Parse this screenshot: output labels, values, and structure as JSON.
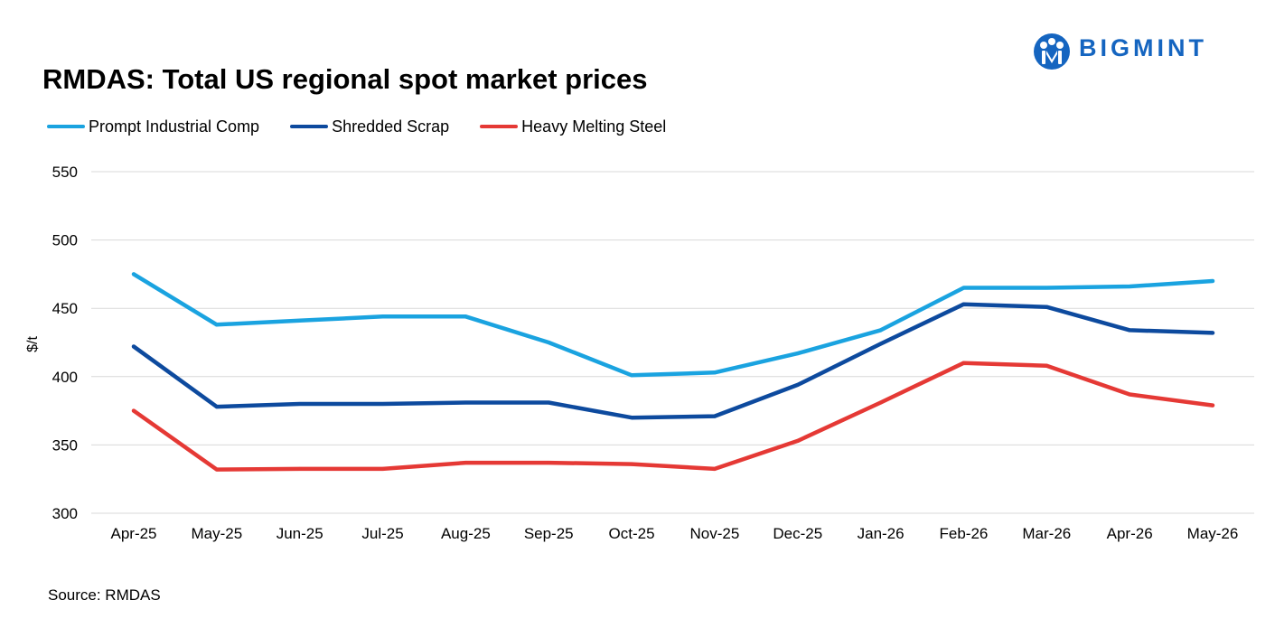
{
  "brand": {
    "name": "BIGMINT",
    "logo_icon": "bigmint-logo-icon",
    "color": "#1565c0"
  },
  "source": "Source: RMDAS",
  "chart_data": {
    "type": "line",
    "title": "RMDAS: Total US regional spot market prices",
    "xlabel": "",
    "ylabel": "$/t",
    "categories": [
      "Apr-25",
      "May-25",
      "Jun-25",
      "Jul-25",
      "Aug-25",
      "Sep-25",
      "Oct-25",
      "Nov-25",
      "Dec-25",
      "Jan-26",
      "Feb-26",
      "Mar-26",
      "Apr-26",
      "May-26"
    ],
    "ylim": [
      300,
      550
    ],
    "yticks": [
      "300",
      "350",
      "400",
      "450",
      "500",
      "550"
    ],
    "grid": true,
    "legend_position": "top-left",
    "series": [
      {
        "name": "Prompt Industrial Comp",
        "color": "#1aa3e0",
        "values": [
          475,
          438,
          441,
          444,
          444,
          425,
          401,
          403,
          417,
          434,
          465,
          465,
          466,
          470
        ]
      },
      {
        "name": "Shredded Scrap",
        "color": "#0d4a9e",
        "values": [
          422,
          378,
          380,
          380,
          381,
          381,
          370,
          371,
          394,
          424,
          453,
          451,
          434,
          432
        ]
      },
      {
        "name": "Heavy Melting Steel",
        "color": "#e53935",
        "values": [
          375,
          332,
          332.5,
          332.5,
          337,
          337,
          336,
          332.5,
          353,
          381,
          410,
          408,
          387,
          379
        ]
      }
    ]
  }
}
